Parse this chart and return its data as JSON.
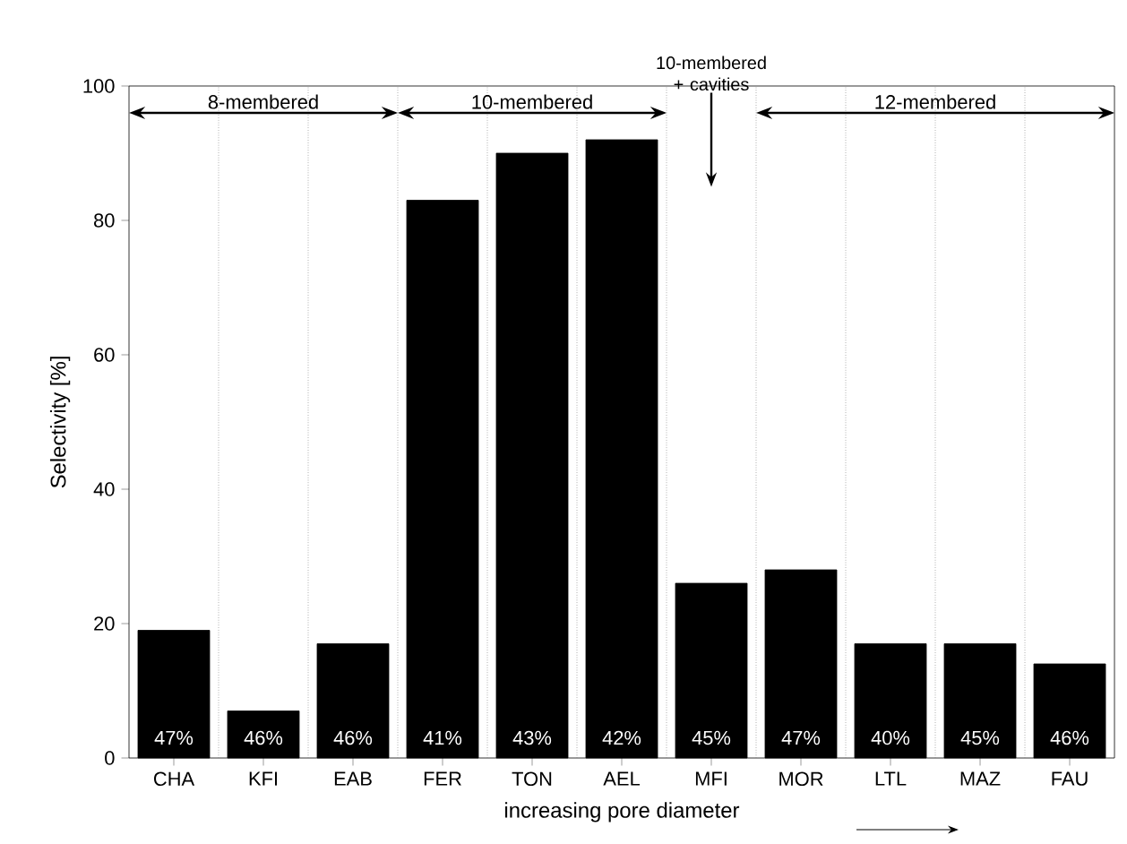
{
  "chart_data": {
    "type": "bar",
    "xlabel": "increasing pore diameter",
    "ylabel": "Selectivity [%]",
    "categories": [
      "CHA",
      "KFI",
      "EAB",
      "FER",
      "TON",
      "AEL",
      "MFI",
      "MOR",
      "LTL",
      "MAZ",
      "FAU"
    ],
    "values": [
      19,
      7,
      17,
      83,
      90,
      92,
      26,
      28,
      17,
      17,
      14
    ],
    "color": "#000000",
    "ylim": [
      0,
      100
    ],
    "yticks": [
      0,
      20,
      40,
      60,
      80,
      100
    ],
    "grid": "x",
    "annotations": [
      "47%",
      "46%",
      "46%",
      "41%",
      "43%",
      "42%",
      "45%",
      "47%",
      "40%",
      "45%",
      "46%",
      "8-membered",
      "10-membered",
      "10-membered + cavities",
      "12-membered"
    ]
  }
}
